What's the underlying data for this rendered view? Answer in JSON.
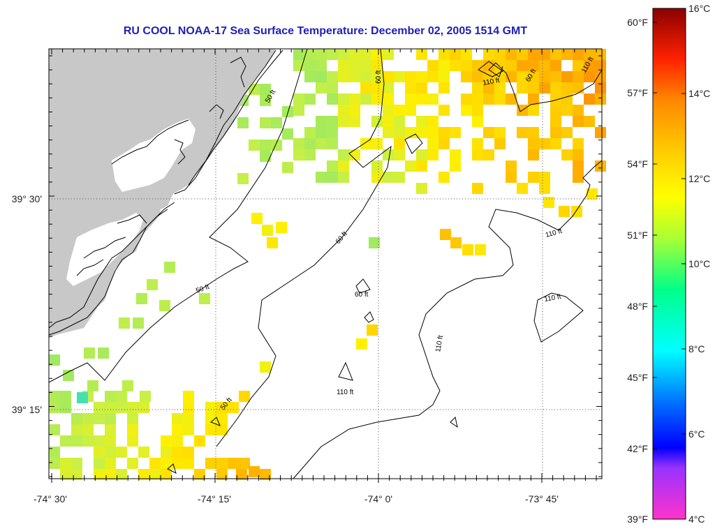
{
  "title": "RU COOL  NOAA-17  Sea Surface Temperature:  December 02, 2005 1514 GMT",
  "map": {
    "lon_labels": [
      "-74° 30'",
      "-74° 15'",
      "-74° 0'",
      "-73° 45'"
    ],
    "lat_labels": [
      "39° 30'",
      "39° 15'"
    ],
    "contour_labels": {
      "c50_a": "50 ft",
      "c50_b": "50 ft",
      "c50_c": "50 ft",
      "c60_a": "60 ft",
      "c60_b": "60 ft",
      "c60_c": "60 ft",
      "c60_d": "60 ft",
      "c110_a": "110 ft",
      "c110_b": "110 ft",
      "c110_c": "110 ft",
      "c110_d": "110 ft",
      "c110_e": "110 ft",
      "c110_f": "110 ft"
    },
    "land_color": "#c8c8c8",
    "ocean_color": "#ffffff"
  },
  "colorbar": {
    "fahrenheit_labels": [
      "60°F",
      "57°F",
      "54°F",
      "51°F",
      "48°F",
      "45°F",
      "42°F",
      "39°F"
    ],
    "celsius_labels": [
      "16°C",
      "14°C",
      "12°C",
      "10°C",
      "8°C",
      "6°C",
      "4°C"
    ],
    "range_c": [
      4,
      16
    ]
  }
}
